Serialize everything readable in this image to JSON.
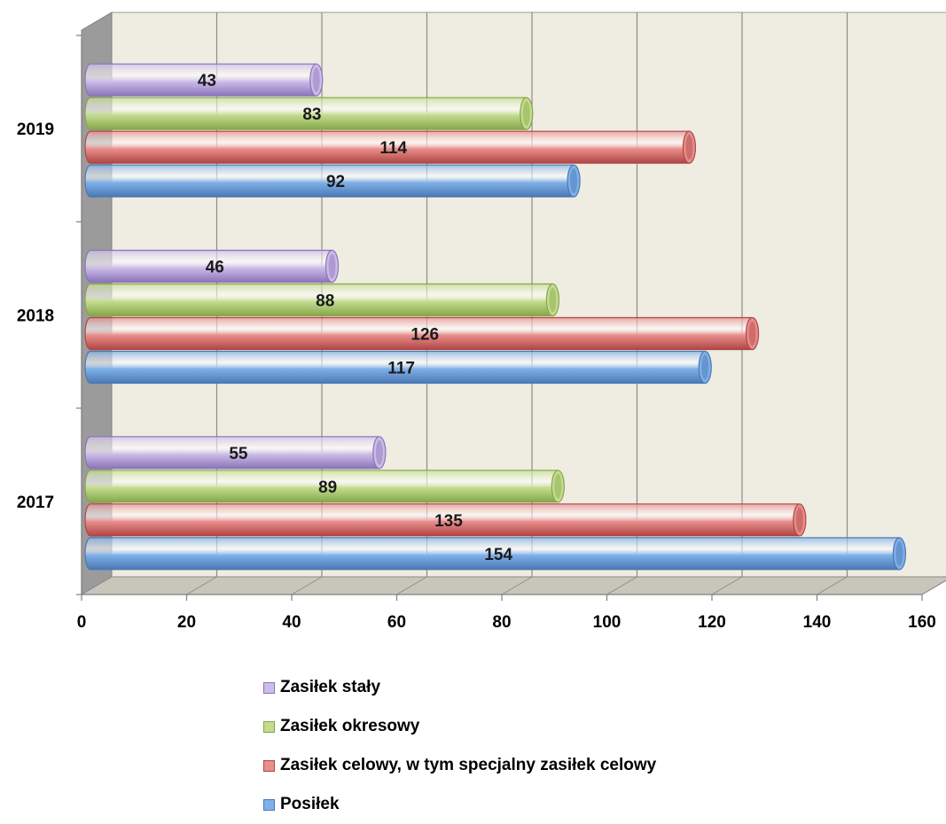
{
  "chart_data": {
    "type": "bar",
    "orientation": "horizontal",
    "categories": [
      "2017",
      "2018",
      "2019"
    ],
    "series": [
      {
        "name": "Posiłek",
        "values": [
          154,
          117,
          92
        ],
        "color": "#7fb0e8",
        "edge": "#4a78b4"
      },
      {
        "name": "Zasiłek celowy, w tym specjalny zasiłek celowy",
        "values": [
          135,
          126,
          114
        ],
        "color": "#e88e8c",
        "edge": "#b04644"
      },
      {
        "name": "Zasiłek okresowy",
        "values": [
          89,
          88,
          83
        ],
        "color": "#c3dc8e",
        "edge": "#86a64a"
      },
      {
        "name": "Zasiłek stały",
        "values": [
          55,
          46,
          43
        ],
        "color": "#cdbce8",
        "edge": "#8a74b8"
      }
    ],
    "xlim": [
      0,
      160
    ],
    "xticks": [
      0,
      20,
      40,
      60,
      80,
      100,
      120,
      140,
      160
    ],
    "grid": true,
    "legend_position": "bottom",
    "legend_order": [
      "Zasiłek stały",
      "Zasiłek okresowy",
      "Zasiłek celowy, w tym specjalny zasiłek celowy",
      "Posiłek"
    ],
    "title": "",
    "xlabel": "",
    "ylabel": ""
  }
}
